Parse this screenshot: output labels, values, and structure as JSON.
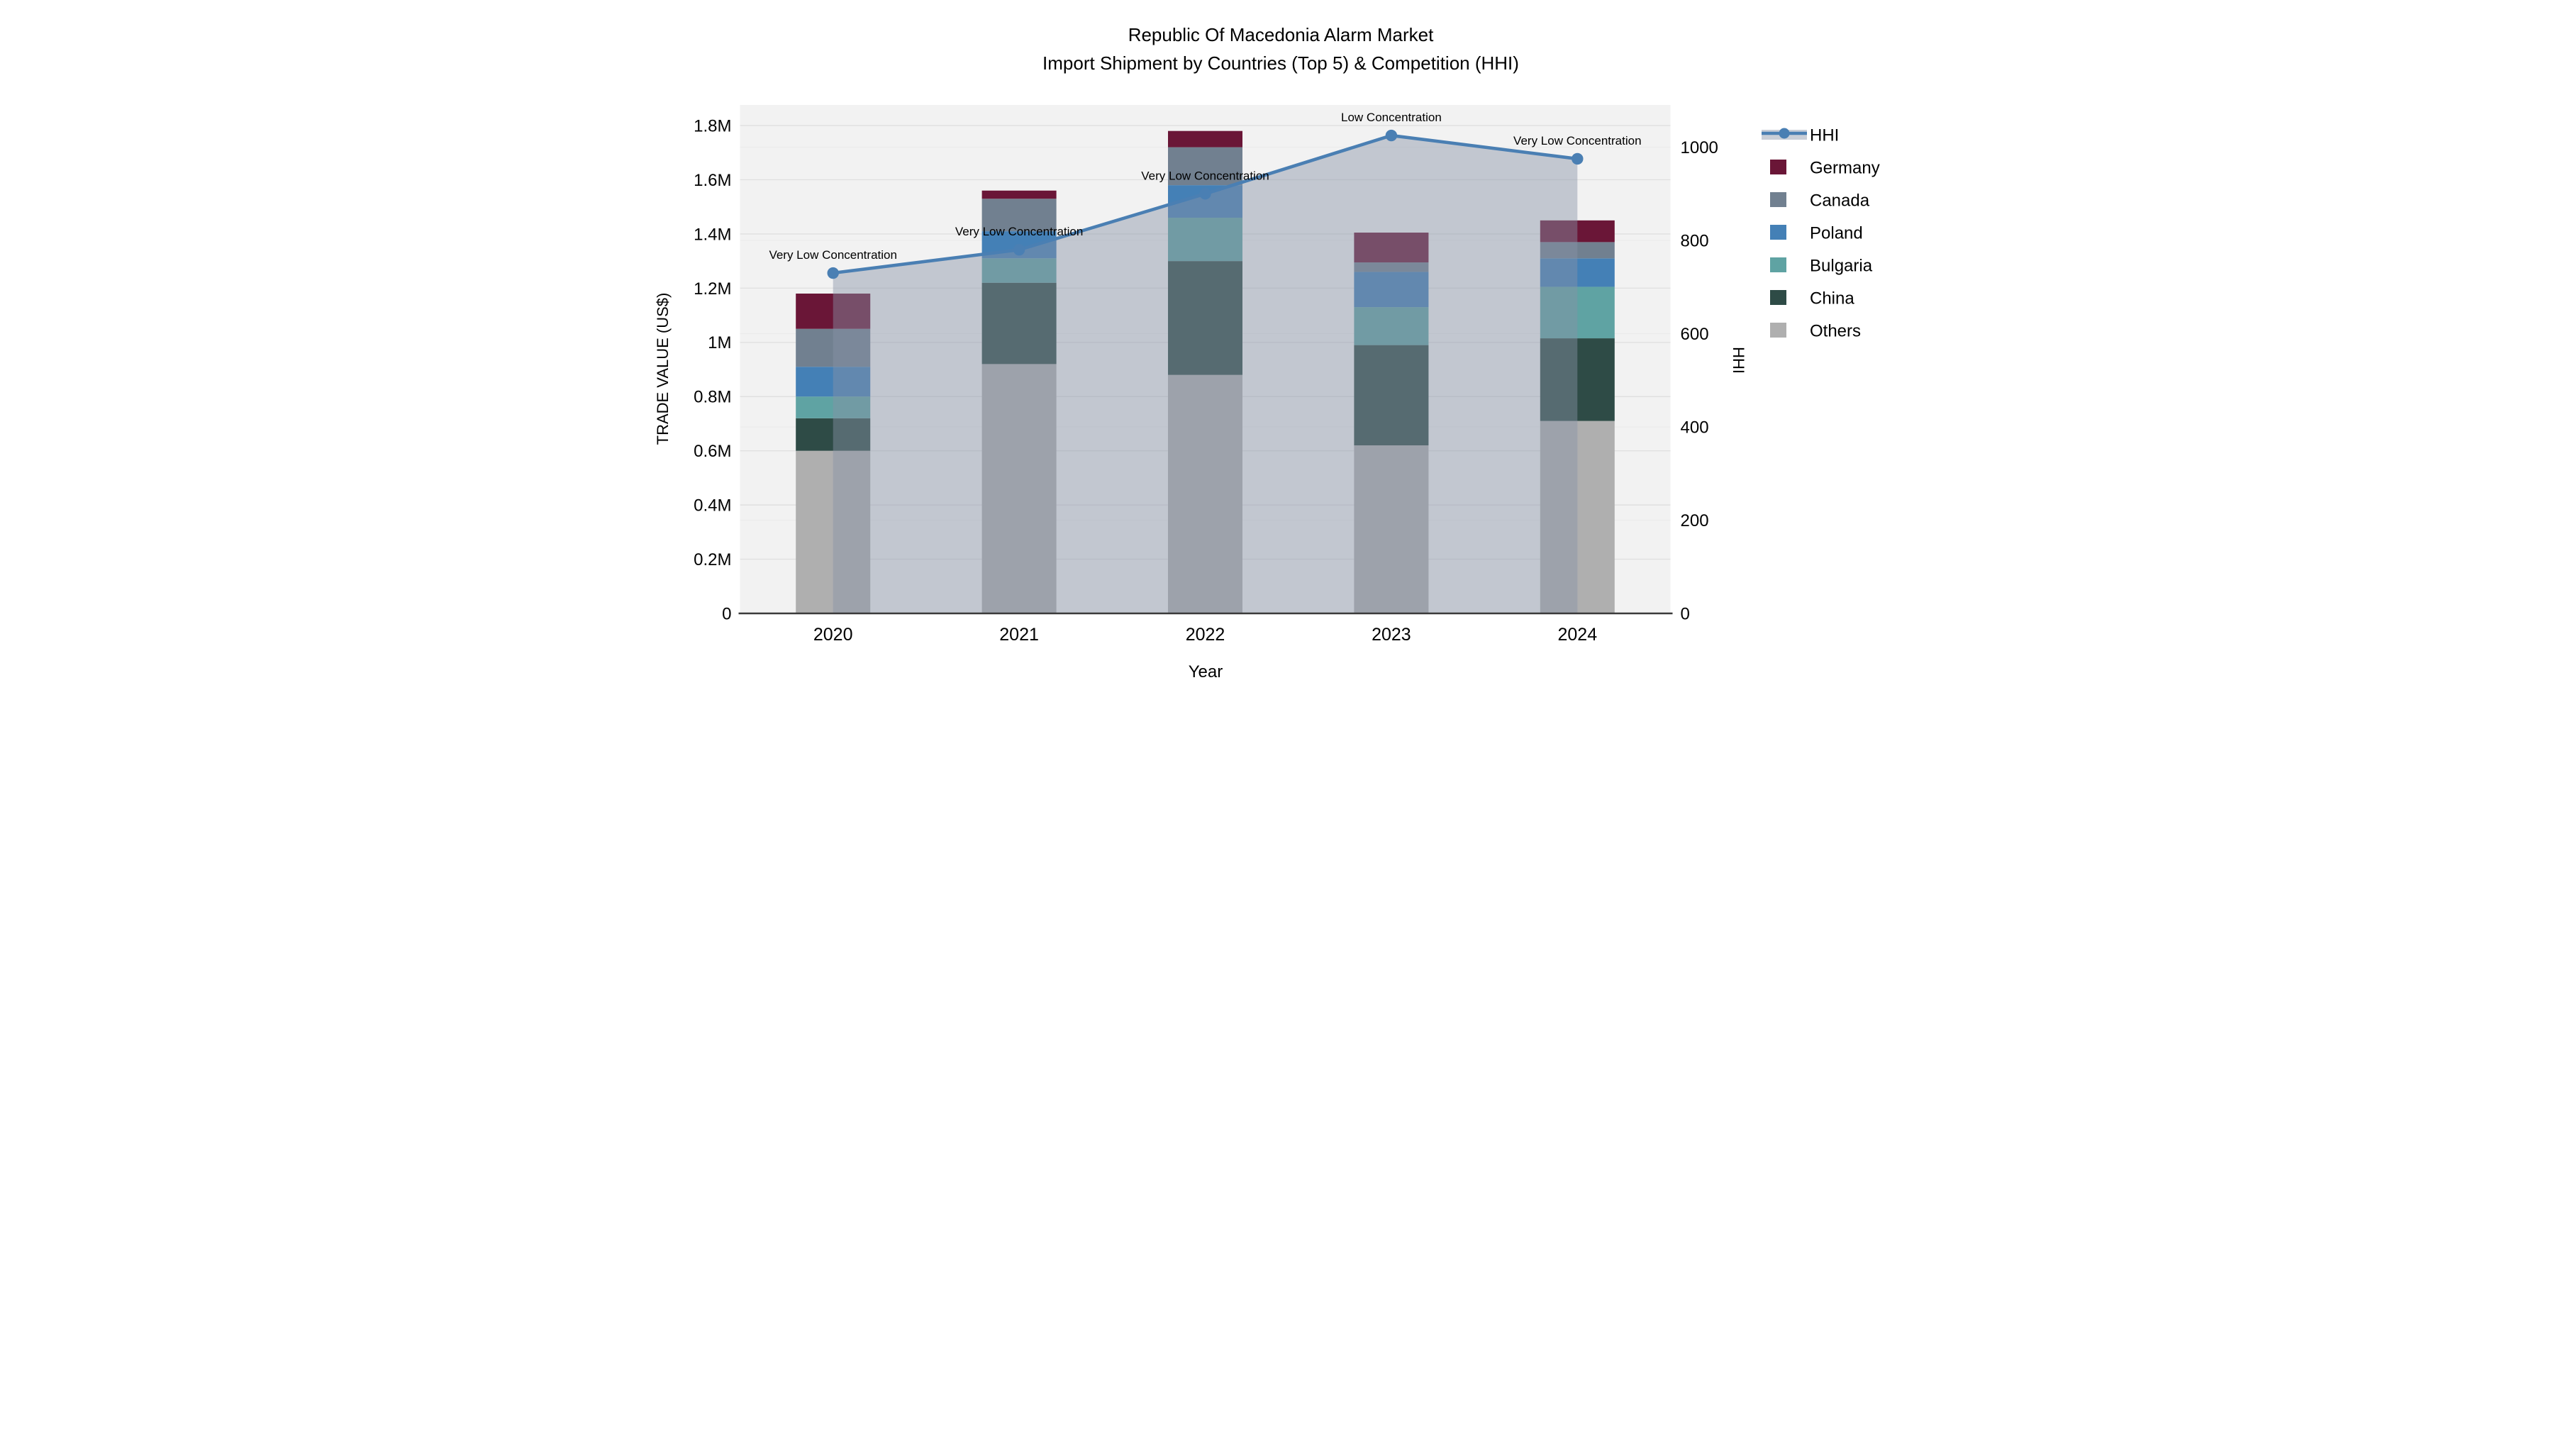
{
  "title": {
    "line1": "Republic Of Macedonia Alarm Market",
    "line2": "Import Shipment by Countries (Top 5) & Competition (HHI)"
  },
  "chart_data": {
    "type": "bar",
    "subtype": "stacked-bars-with-hhi-line-and-area",
    "categories": [
      "2020",
      "2021",
      "2022",
      "2023",
      "2024"
    ],
    "value_unit": "M US$",
    "series": [
      {
        "name": "Others",
        "color": "#afafaf",
        "values": [
          0.6,
          0.92,
          0.88,
          0.62,
          0.71
        ]
      },
      {
        "name": "China",
        "color": "#2e4b46",
        "values": [
          0.12,
          0.3,
          0.42,
          0.37,
          0.305
        ]
      },
      {
        "name": "Bulgaria",
        "color": "#5fa3a3",
        "values": [
          0.08,
          0.09,
          0.16,
          0.14,
          0.19
        ]
      },
      {
        "name": "Poland",
        "color": "#4480b6",
        "values": [
          0.11,
          0.1,
          0.12,
          0.13,
          0.105
        ]
      },
      {
        "name": "Canada",
        "color": "#718090",
        "values": [
          0.14,
          0.12,
          0.14,
          0.035,
          0.06
        ]
      },
      {
        "name": "Germany",
        "color": "#6a1637",
        "values": [
          0.13,
          0.03,
          0.06,
          0.11,
          0.08
        ]
      }
    ],
    "bar_totals": [
      1.18,
      1.56,
      1.78,
      1.405,
      1.45
    ],
    "line_series": {
      "name": "HHI",
      "color": "#4a7fb3",
      "area_color": "rgba(136,146,167,0.45)",
      "values": [
        730,
        780,
        900,
        1025,
        975
      ]
    },
    "annotations": [
      {
        "category": "2020",
        "text": "Very Low Concentration"
      },
      {
        "category": "2021",
        "text": "Very Low Concentration"
      },
      {
        "category": "2022",
        "text": "Very Low Concentration"
      },
      {
        "category": "2023",
        "text": "Low Concentration"
      },
      {
        "category": "2024",
        "text": "Very Low Concentration"
      }
    ],
    "xlabel": "Year",
    "ylabel_left": "TRADE VALUE (US$)",
    "ylabel_right": "HHI",
    "y_left": {
      "lim": [
        0,
        1.88
      ],
      "ticks": [
        {
          "v": 0,
          "label": "0"
        },
        {
          "v": 0.2,
          "label": "0.2M"
        },
        {
          "v": 0.4,
          "label": "0.4M"
        },
        {
          "v": 0.6,
          "label": "0.6M"
        },
        {
          "v": 0.8,
          "label": "0.8M"
        },
        {
          "v": 1,
          "label": "1M"
        },
        {
          "v": 1.2,
          "label": "1.2M"
        },
        {
          "v": 1.4,
          "label": "1.4M"
        },
        {
          "v": 1.6,
          "label": "1.6M"
        },
        {
          "v": 1.8,
          "label": "1.8M"
        }
      ]
    },
    "y_right": {
      "lim": [
        0,
        1094
      ],
      "ticks": [
        {
          "v": 0,
          "label": "0"
        },
        {
          "v": 200,
          "label": "200"
        },
        {
          "v": 400,
          "label": "400"
        },
        {
          "v": 600,
          "label": "600"
        },
        {
          "v": 800,
          "label": "800"
        },
        {
          "v": 1000,
          "label": "1000"
        }
      ]
    },
    "grid": true,
    "legend_position": "right"
  },
  "legend": {
    "items": [
      {
        "label": "HHI",
        "type": "line",
        "color": "#4a7fb3"
      },
      {
        "label": "Germany",
        "type": "swatch",
        "color": "#6a1637"
      },
      {
        "label": "Canada",
        "type": "swatch",
        "color": "#718090"
      },
      {
        "label": "Poland",
        "type": "swatch",
        "color": "#4480b6"
      },
      {
        "label": "Bulgaria",
        "type": "swatch",
        "color": "#5fa3a3"
      },
      {
        "label": "China",
        "type": "swatch",
        "color": "#2e4b46"
      },
      {
        "label": "Others",
        "type": "swatch",
        "color": "#afafaf"
      }
    ]
  },
  "colors": {
    "plot_bg": "#f2f2f2",
    "grid_left": "#e0e0e0",
    "grid_right": "#ebebeb",
    "axis_line": "#3a3a3a",
    "text": "#000000"
  }
}
